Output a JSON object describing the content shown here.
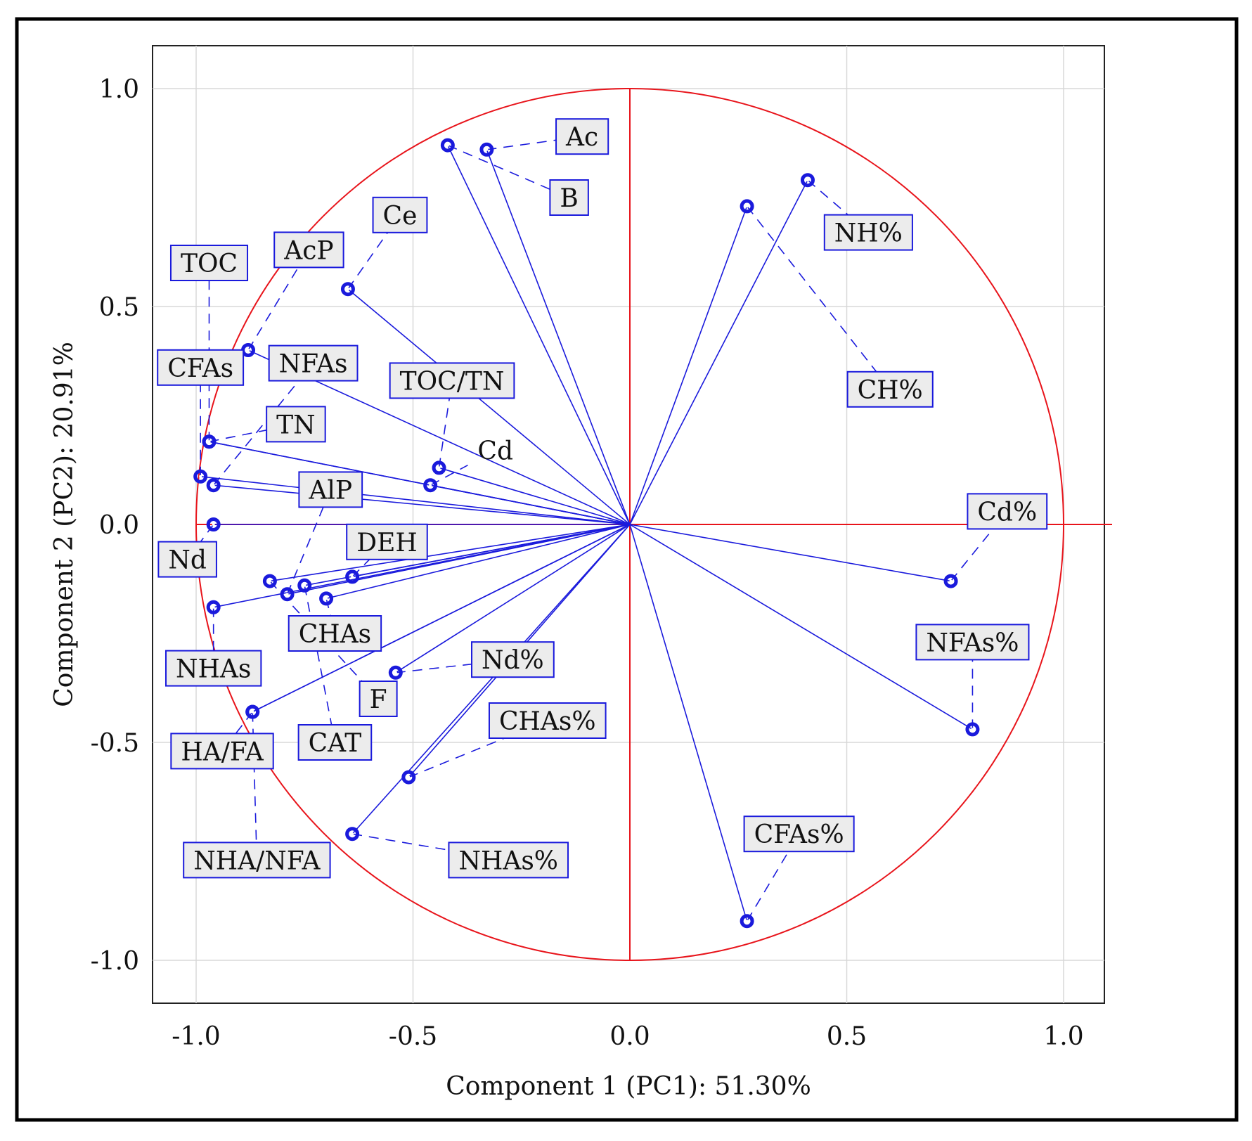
{
  "chart_data": {
    "type": "scatter",
    "subtype": "pca-loading-plot",
    "xlabel": "Component 1 (PC1): 51.30%",
    "ylabel": "Component 2 (PC2): 20.91%",
    "xlim": [
      -1.1,
      1.1
    ],
    "ylim": [
      -1.1,
      1.1
    ],
    "xticks": [
      -1.0,
      -0.5,
      0.0,
      0.5,
      1.0
    ],
    "yticks": [
      -1.0,
      -0.5,
      0.0,
      0.5,
      1.0
    ],
    "xtick_labels": [
      "-1.0",
      "-0.5",
      "0.0",
      "0.5",
      "1.0"
    ],
    "ytick_labels": [
      "-1.0",
      "-0.5",
      "0.0",
      "0.5",
      "1.0"
    ],
    "grid": true,
    "unit_circle": true,
    "colors": {
      "vectors": "#1a1adc",
      "circle": "#e8141b",
      "axes": "#e8141b",
      "grid": "#d8d8d8",
      "label_box": "#ececec"
    },
    "variables": [
      {
        "name": "Ac",
        "x": -0.33,
        "y": 0.86,
        "lx": -0.11,
        "ly": 0.89,
        "boxed": true
      },
      {
        "name": "B",
        "x": -0.42,
        "y": 0.87,
        "lx": -0.14,
        "ly": 0.75,
        "boxed": true
      },
      {
        "name": "Ce",
        "x": -0.65,
        "y": 0.54,
        "lx": -0.53,
        "ly": 0.71,
        "boxed": true
      },
      {
        "name": "AcP",
        "x": -0.88,
        "y": 0.4,
        "lx": -0.74,
        "ly": 0.63,
        "boxed": true
      },
      {
        "name": "TOC",
        "x": -0.97,
        "y": 0.19,
        "lx": -0.97,
        "ly": 0.6,
        "boxed": true
      },
      {
        "name": "CFAs",
        "x": -0.99,
        "y": 0.11,
        "lx": -0.99,
        "ly": 0.36,
        "boxed": true
      },
      {
        "name": "NFAs",
        "x": -0.96,
        "y": 0.09,
        "lx": -0.73,
        "ly": 0.37,
        "boxed": true
      },
      {
        "name": "TN",
        "x": -0.97,
        "y": 0.19,
        "lx": -0.77,
        "ly": 0.23,
        "boxed": true
      },
      {
        "name": "TOC/TN",
        "x": -0.44,
        "y": 0.13,
        "lx": -0.41,
        "ly": 0.33,
        "boxed": true
      },
      {
        "name": "Cd",
        "x": -0.46,
        "y": 0.09,
        "lx": -0.31,
        "ly": 0.17,
        "boxed": false
      },
      {
        "name": "AlP",
        "x": -0.79,
        "y": -0.16,
        "lx": -0.69,
        "ly": 0.08,
        "boxed": true
      },
      {
        "name": "DEH",
        "x": -0.64,
        "y": -0.12,
        "lx": -0.56,
        "ly": -0.04,
        "boxed": true
      },
      {
        "name": "Nd",
        "x": -0.96,
        "y": 0.0,
        "lx": -1.02,
        "ly": -0.08,
        "boxed": true
      },
      {
        "name": "CHAs",
        "x": -0.7,
        "y": -0.17,
        "lx": -0.68,
        "ly": -0.25,
        "boxed": true
      },
      {
        "name": "F",
        "x": -0.83,
        "y": -0.13,
        "lx": -0.58,
        "ly": -0.4,
        "boxed": true
      },
      {
        "name": "CAT",
        "x": -0.75,
        "y": -0.14,
        "lx": -0.68,
        "ly": -0.5,
        "boxed": true
      },
      {
        "name": "NHAs",
        "x": -0.96,
        "y": -0.19,
        "lx": -0.96,
        "ly": -0.33,
        "boxed": true
      },
      {
        "name": "HA/FA",
        "x": -0.87,
        "y": -0.43,
        "lx": -0.94,
        "ly": -0.52,
        "boxed": true
      },
      {
        "name": "NHA/NFA",
        "x": -0.87,
        "y": -0.43,
        "lx": -0.86,
        "ly": -0.77,
        "boxed": true
      },
      {
        "name": "Nd%",
        "x": -0.54,
        "y": -0.34,
        "lx": -0.27,
        "ly": -0.31,
        "boxed": true
      },
      {
        "name": "CHAs%",
        "x": -0.51,
        "y": -0.58,
        "lx": -0.19,
        "ly": -0.45,
        "boxed": true
      },
      {
        "name": "NHAs%",
        "x": -0.64,
        "y": -0.71,
        "lx": -0.28,
        "ly": -0.77,
        "boxed": true
      },
      {
        "name": "NH%",
        "x": 0.41,
        "y": 0.79,
        "lx": 0.55,
        "ly": 0.67,
        "boxed": true
      },
      {
        "name": "CH%",
        "x": 0.27,
        "y": 0.73,
        "lx": 0.6,
        "ly": 0.31,
        "boxed": true
      },
      {
        "name": "Cd%",
        "x": 0.74,
        "y": -0.13,
        "lx": 0.87,
        "ly": 0.03,
        "boxed": true
      },
      {
        "name": "NFAs%",
        "x": 0.79,
        "y": -0.47,
        "lx": 0.79,
        "ly": -0.27,
        "boxed": true
      },
      {
        "name": "CFAs%",
        "x": 0.27,
        "y": -0.91,
        "lx": 0.39,
        "ly": -0.71,
        "boxed": true
      }
    ]
  }
}
